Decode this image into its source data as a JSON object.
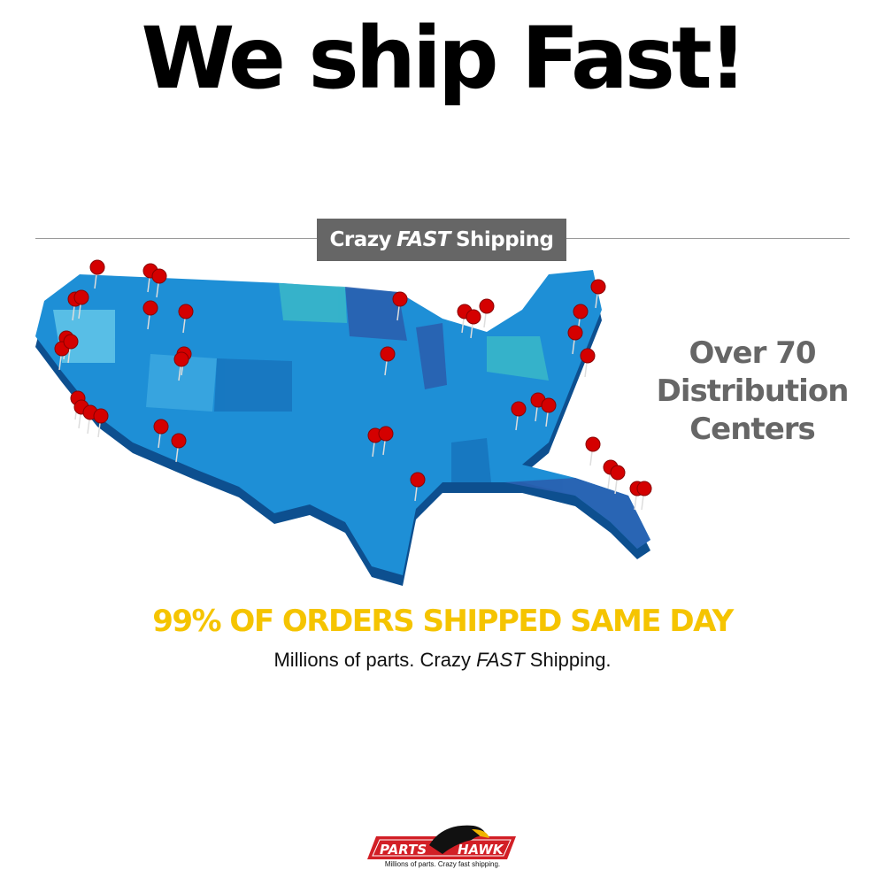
{
  "headline": "We ship Fast!",
  "banner": {
    "part1": "Crazy",
    "part2": "FAST",
    "part3": "Shipping"
  },
  "side_text": [
    "Over 70",
    "Distribution",
    "Centers"
  ],
  "highlight": "99% OF ORDERS SHIPPED SAME DAY",
  "subline": {
    "part1": "Millions of parts. Crazy",
    "part2": "FAST",
    "part3": "Shipping."
  },
  "logo": {
    "left": "PARTS",
    "right": "HAWK",
    "tagline": "Millions of parts. Crazy fast shipping."
  },
  "colors": {
    "map_blue": "#1e8fd6",
    "pin_red": "#d40000",
    "highlight": "#f5c400",
    "banner_bg": "#666666"
  },
  "icons": {
    "pin": "map-pin-icon",
    "hawk": "hawk-logo-icon"
  }
}
